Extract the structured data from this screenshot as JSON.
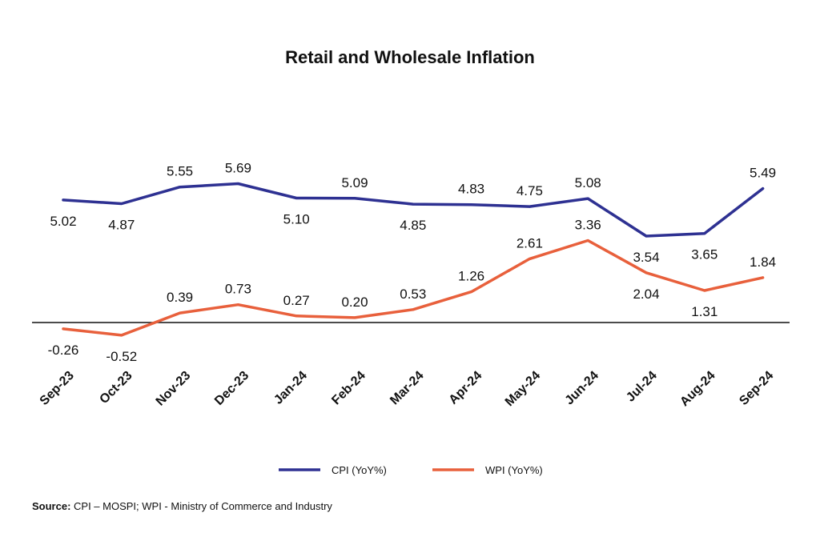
{
  "chart_data": {
    "type": "line",
    "title": "Retail and Wholesale Inflation",
    "categories": [
      "Sep-23",
      "Oct-23",
      "Nov-23",
      "Dec-23",
      "Jan-24",
      "Feb-24",
      "Mar-24",
      "Apr-24",
      "May-24",
      "Jun-24",
      "Jul-24",
      "Aug-24",
      "Sep-24"
    ],
    "series": [
      {
        "name": "CPI (YoY%)",
        "color": "#2e3192",
        "values": [
          5.02,
          4.87,
          5.55,
          5.69,
          5.1,
          5.09,
          4.85,
          4.83,
          4.75,
          5.08,
          3.54,
          3.65,
          5.49
        ],
        "labels": [
          "5.02",
          "4.87",
          "5.55",
          "5.69",
          "5.10",
          "5.09",
          "4.85",
          "4.83",
          "4.75",
          "5.08",
          "3.54",
          "3.65",
          "5.49"
        ],
        "label_positions": [
          "below",
          "below",
          "above",
          "above",
          "below",
          "above",
          "below",
          "above",
          "above",
          "above",
          "below",
          "below",
          "above"
        ]
      },
      {
        "name": "WPI (YoY%)",
        "color": "#e8603c",
        "values": [
          -0.26,
          -0.52,
          0.39,
          0.73,
          0.27,
          0.2,
          0.53,
          1.26,
          2.61,
          3.36,
          2.04,
          1.31,
          1.84
        ],
        "labels": [
          "-0.26",
          "-0.52",
          "0.39",
          "0.73",
          "0.27",
          "0.20",
          "0.53",
          "1.26",
          "2.61",
          "3.36",
          "2.04",
          "1.31",
          "1.84"
        ],
        "label_positions": [
          "below",
          "below",
          "above",
          "above",
          "above",
          "above",
          "above",
          "above",
          "above",
          "above",
          "below",
          "below",
          "above"
        ]
      }
    ],
    "zero_line": true,
    "grid": false,
    "legend_position": "bottom"
  },
  "source": {
    "label": "Source:",
    "text": " CPI – MOSPI; WPI - Ministry of Commerce and Industry"
  }
}
